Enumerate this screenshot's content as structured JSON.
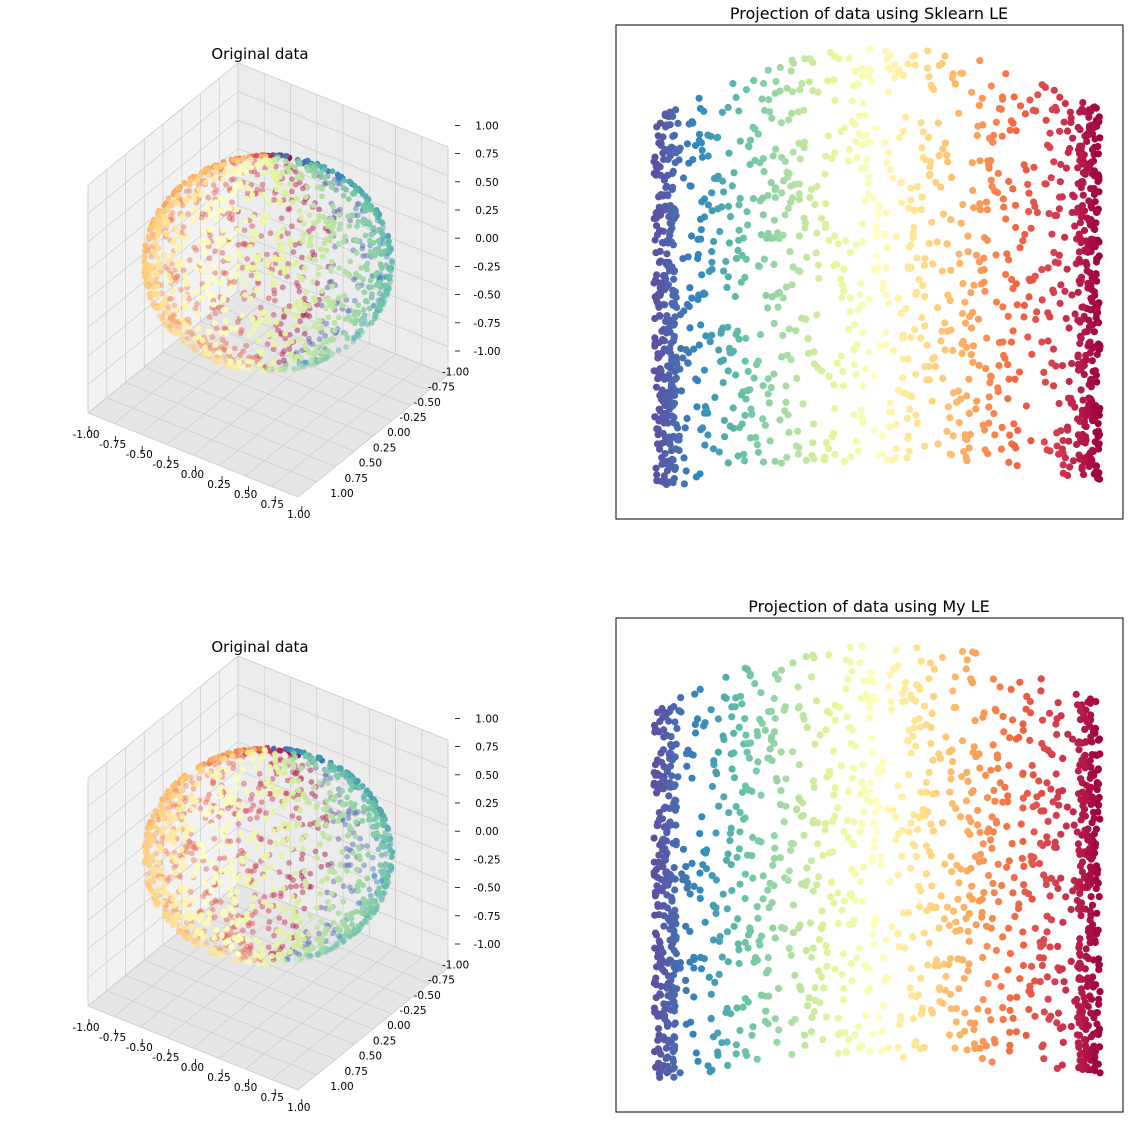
{
  "figure": {
    "panels": {
      "top_left_title": "Original data",
      "top_right_title": "Projection of data using Sklearn LE",
      "bottom_left_title": "Original data",
      "bottom_right_title": "Projection of data using My LE"
    }
  },
  "chart_data": [
    {
      "type": "scatter3d",
      "title": "Original data",
      "description_shape": "points on unit sphere, colored by angle with Spectral colormap",
      "xlim": [
        -1.0,
        1.0
      ],
      "ylim": [
        -1.0,
        1.0
      ],
      "zlim": [
        -1.0,
        1.0
      ],
      "x_ticks": [
        "-1.00",
        "-0.75",
        "-0.50",
        "-0.25",
        "0.00",
        "0.25",
        "0.50",
        "0.75",
        "1.00"
      ],
      "y_ticks": [
        "-1.00",
        "-0.75",
        "-0.50",
        "-0.25",
        "0.00",
        "0.25",
        "0.50",
        "0.75",
        "1.00"
      ],
      "z_ticks": [
        "-1.00",
        "-0.75",
        "-0.50",
        "-0.25",
        "0.00",
        "0.25",
        "0.50",
        "0.75",
        "1.00"
      ],
      "colormap": "Spectral",
      "grid": true
    },
    {
      "type": "scatter",
      "title": "Projection of data using Sklearn LE",
      "colormap": "Spectral",
      "axis_ticks_shown": false,
      "grid": false
    },
    {
      "type": "scatter3d",
      "title": "Original data",
      "xlim": [
        -1.0,
        1.0
      ],
      "ylim": [
        -1.0,
        1.0
      ],
      "zlim": [
        -1.0,
        1.0
      ],
      "x_ticks": [
        "-1.00",
        "-0.75",
        "-0.50",
        "-0.25",
        "0.00",
        "0.25",
        "0.50",
        "0.75",
        "1.00"
      ],
      "y_ticks": [
        "-1.00",
        "-0.75",
        "-0.50",
        "-0.25",
        "0.00",
        "0.25",
        "0.50",
        "0.75",
        "1.00"
      ],
      "z_ticks": [
        "-1.00",
        "-0.75",
        "-0.50",
        "-0.25",
        "0.00",
        "0.25",
        "0.50",
        "0.75",
        "1.00"
      ],
      "colormap": "Spectral",
      "grid": true
    },
    {
      "type": "scatter",
      "title": "Projection of data using My LE",
      "colormap": "Spectral",
      "axis_ticks_shown": false,
      "grid": false
    }
  ],
  "colors": {
    "spectral": [
      "#9e0142",
      "#d53e4f",
      "#f46d43",
      "#fdae61",
      "#fee08b",
      "#ffffbf",
      "#e6f598",
      "#abdda4",
      "#66c2a5",
      "#3288bd",
      "#5e4fa2"
    ],
    "pane_left": "#f2f2f2",
    "pane_right": "#ececec",
    "pane_floor": "#e6e6e6",
    "grid": "#cfcfcf"
  }
}
